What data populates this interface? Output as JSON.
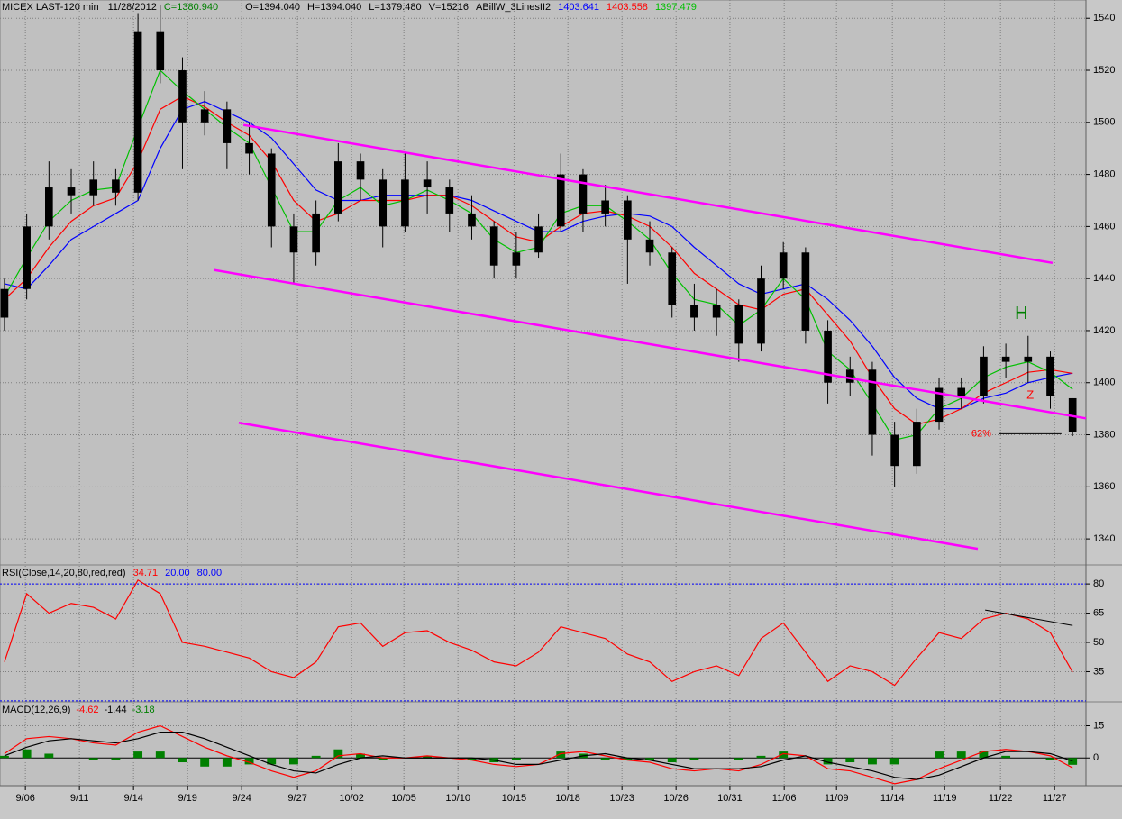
{
  "chart_data": [
    {
      "type": "candlestick",
      "title": "MICEX LAST-120 min",
      "date": "11/28/2012",
      "ohlcv_labels": [
        "C=1380.940",
        "O=1394.040",
        "H=1394.040",
        "L=1379.480",
        "V=15216"
      ],
      "indicator": "ABillW_3LinesII2",
      "open": [
        1425,
        1436,
        1460,
        1475,
        1472,
        1478,
        1473,
        1535,
        1520,
        1500,
        1505,
        1492,
        1488,
        1460,
        1450,
        1465,
        1485,
        1478,
        1460,
        1478,
        1475,
        1465,
        1460,
        1445,
        1450,
        1460,
        1480,
        1465,
        1470,
        1455,
        1450,
        1430,
        1425,
        1430,
        1415,
        1440,
        1450,
        1420,
        1400,
        1405,
        1380,
        1368,
        1385,
        1398,
        1395,
        1410,
        1408,
        1410,
        1394.04
      ],
      "high": [
        1440,
        1465,
        1485,
        1482,
        1485,
        1482,
        1542,
        1545,
        1525,
        1512,
        1508,
        1500,
        1490,
        1465,
        1470,
        1492,
        1488,
        1482,
        1488,
        1485,
        1478,
        1472,
        1462,
        1458,
        1465,
        1488,
        1482,
        1476,
        1472,
        1462,
        1452,
        1438,
        1436,
        1432,
        1445,
        1454,
        1452,
        1424,
        1410,
        1408,
        1385,
        1390,
        1402,
        1402,
        1414,
        1415,
        1418,
        1412,
        1394.04
      ],
      "low": [
        1420,
        1432,
        1455,
        1465,
        1468,
        1468,
        1470,
        1515,
        1482,
        1495,
        1482,
        1480,
        1452,
        1438,
        1445,
        1462,
        1470,
        1452,
        1458,
        1465,
        1458,
        1455,
        1440,
        1440,
        1448,
        1458,
        1458,
        1460,
        1438,
        1445,
        1425,
        1420,
        1418,
        1408,
        1412,
        1436,
        1415,
        1392,
        1395,
        1372,
        1360,
        1365,
        1382,
        1390,
        1392,
        1402,
        1400,
        1390,
        1379.48
      ],
      "close": [
        1436,
        1460,
        1475,
        1472,
        1478,
        1473,
        1535,
        1520,
        1500,
        1505,
        1492,
        1488,
        1460,
        1450,
        1465,
        1485,
        1478,
        1460,
        1478,
        1475,
        1465,
        1460,
        1445,
        1450,
        1460,
        1480,
        1465,
        1470,
        1455,
        1450,
        1430,
        1425,
        1430,
        1415,
        1440,
        1450,
        1420,
        1400,
        1405,
        1380,
        1368,
        1385,
        1398,
        1395,
        1410,
        1408,
        1410,
        1395,
        1380.94
      ],
      "candle_color": "#000000",
      "series": [
        {
          "name": "blue",
          "color": "#0000ff",
          "values": [
            1438,
            1436,
            1445,
            1455,
            1460,
            1465,
            1470,
            1490,
            1505,
            1508,
            1504,
            1500,
            1494,
            1484,
            1474,
            1470,
            1470,
            1472,
            1472,
            1472,
            1472,
            1470,
            1466,
            1462,
            1458,
            1458,
            1462,
            1464,
            1465,
            1464,
            1460,
            1452,
            1445,
            1438,
            1434,
            1436,
            1438,
            1432,
            1424,
            1414,
            1402,
            1394,
            1390,
            1390,
            1394,
            1396,
            1400,
            1402,
            1403.641
          ]
        },
        {
          "name": "red",
          "color": "#ff0000",
          "values": [
            1432,
            1440,
            1452,
            1462,
            1468,
            1471,
            1485,
            1505,
            1510,
            1506,
            1500,
            1495,
            1485,
            1470,
            1462,
            1465,
            1470,
            1470,
            1470,
            1472,
            1472,
            1468,
            1462,
            1456,
            1454,
            1460,
            1465,
            1466,
            1464,
            1460,
            1452,
            1442,
            1436,
            1430,
            1428,
            1434,
            1436,
            1426,
            1416,
            1402,
            1390,
            1384,
            1386,
            1390,
            1396,
            1400,
            1404,
            1405,
            1403.558
          ]
        },
        {
          "name": "green",
          "color": "#00c000",
          "values": [
            1433,
            1448,
            1462,
            1470,
            1474,
            1475,
            1498,
            1520,
            1512,
            1505,
            1498,
            1492,
            1475,
            1458,
            1458,
            1470,
            1475,
            1468,
            1470,
            1474,
            1470,
            1465,
            1455,
            1450,
            1452,
            1465,
            1468,
            1468,
            1462,
            1455,
            1442,
            1432,
            1430,
            1422,
            1428,
            1440,
            1432,
            1412,
            1405,
            1392,
            1378,
            1380,
            1390,
            1394,
            1402,
            1406,
            1408,
            1404,
            1397.479
          ]
        }
      ],
      "xlim": [
        -0.2,
        48.6
      ],
      "xticks": [
        {
          "value": 0.94,
          "label": "9/06"
        },
        {
          "value": 3.37,
          "label": "9/11"
        },
        {
          "value": 5.8,
          "label": "9/14"
        },
        {
          "value": 8.23,
          "label": "9/19"
        },
        {
          "value": 10.66,
          "label": "9/24"
        },
        {
          "value": 13.17,
          "label": "9/27"
        },
        {
          "value": 15.6,
          "label": "10/02"
        },
        {
          "value": 17.95,
          "label": "10/05"
        },
        {
          "value": 20.38,
          "label": "10/10"
        },
        {
          "value": 22.9,
          "label": "10/15"
        },
        {
          "value": 25.32,
          "label": "10/18"
        },
        {
          "value": 27.75,
          "label": "10/23"
        },
        {
          "value": 30.18,
          "label": "10/26"
        },
        {
          "value": 32.6,
          "label": "10/31"
        },
        {
          "value": 35.04,
          "label": "11/06"
        },
        {
          "value": 37.39,
          "label": "11/09"
        },
        {
          "value": 39.9,
          "label": "11/14"
        },
        {
          "value": 42.25,
          "label": "11/19"
        },
        {
          "value": 44.76,
          "label": "11/22"
        },
        {
          "value": 47.19,
          "label": "11/27"
        }
      ],
      "ylim": [
        1330,
        1547
      ],
      "yticks": [
        1340,
        1360,
        1380,
        1400,
        1420,
        1440,
        1460,
        1480,
        1500,
        1520,
        1540
      ],
      "grid": true,
      "lines": [
        {
          "x": [
            10.74,
            47.1
          ],
          "y": [
            1499,
            1446
          ],
          "color": "#ff00ff"
        },
        {
          "x": [
            9.41,
            48.6
          ],
          "y": [
            1443.3,
            1386.3
          ],
          "color": "#ff00ff"
        },
        {
          "x": [
            10.53,
            43.74
          ],
          "y": [
            1384.6,
            1336.2
          ],
          "color": "#ff00ff"
        },
        {
          "x": [
            44.7,
            47.5
          ],
          "y": [
            1380.4,
            1380.4
          ],
          "color": "#000000"
        }
      ],
      "annotations": [
        {
          "text": "H",
          "x": 45.7,
          "y": 1426.3,
          "color": "#008000"
        },
        {
          "text": "Z",
          "x": 46.1,
          "y": 1395,
          "color": "#ff0000"
        },
        {
          "text": "62%",
          "x": 43.9,
          "y": 1380.4,
          "color": "#ff0000"
        }
      ]
    },
    {
      "type": "line",
      "title": "RSI(Close,14,20,80,red,red)",
      "series": [
        {
          "name": "RSI",
          "color": "#ff0000",
          "values": [
            40,
            75,
            65,
            70,
            68,
            62,
            82,
            75,
            50,
            48,
            45,
            42,
            35,
            32,
            40,
            58,
            60,
            48,
            55,
            56,
            50,
            46,
            40,
            38,
            45,
            58,
            55,
            52,
            44,
            40,
            30,
            35,
            38,
            33,
            52,
            60,
            45,
            30,
            38,
            35,
            28,
            42,
            55,
            52,
            62,
            65,
            62,
            55,
            34.71
          ]
        }
      ],
      "levels": [
        {
          "value": 20,
          "label": "20.00"
        },
        {
          "value": 80,
          "label": "80.00"
        }
      ],
      "level_color": "#0000ff",
      "ylim": [
        19.5,
        89.3
      ],
      "yticks": [
        35,
        50,
        65,
        80
      ],
      "grid": true,
      "lines": [
        {
          "x": [
            44.07,
            48
          ],
          "y": [
            66.6,
            58.7
          ],
          "color": "#000000"
        }
      ]
    },
    {
      "type": "macd",
      "title": "MACD(12,26,9)",
      "series": [
        {
          "name": "MACD",
          "color": "#ff0000",
          "kind": "line",
          "values": [
            2,
            9,
            10,
            9,
            7,
            6,
            12,
            15,
            10,
            5,
            1,
            -2,
            -6,
            -9,
            -6,
            1,
            2,
            0,
            0,
            1,
            0,
            -1,
            -3,
            -4,
            -3,
            2,
            3,
            1,
            -1,
            -2,
            -5,
            -6,
            -5,
            -6,
            -3,
            2,
            1,
            -5,
            -6,
            -9,
            -12,
            -10,
            -5,
            -1,
            3,
            4,
            3,
            1,
            -4.62
          ]
        },
        {
          "name": "Signal",
          "color": "#000000",
          "kind": "line",
          "values": [
            1,
            5,
            8,
            9,
            8,
            7,
            9,
            12,
            12,
            9,
            5,
            1,
            -3,
            -6,
            -7,
            -3,
            0,
            1,
            0,
            0,
            0,
            0,
            -1,
            -3,
            -3,
            -1,
            1,
            2,
            0,
            -1,
            -3,
            -5,
            -5,
            -5,
            -4,
            -1,
            1,
            -2,
            -4,
            -6,
            -9,
            -10,
            -8,
            -4,
            0,
            3,
            3,
            2,
            -1.44
          ]
        },
        {
          "name": "Histogram",
          "color": "#008000",
          "kind": "bar",
          "values": [
            1,
            4,
            2,
            0,
            -1,
            -1,
            3,
            3,
            -2,
            -4,
            -4,
            -3,
            -3,
            -3,
            1,
            4,
            2,
            -1,
            0,
            1,
            0,
            -1,
            -2,
            -1,
            0,
            3,
            2,
            -1,
            -1,
            -1,
            -2,
            -1,
            0,
            -1,
            1,
            3,
            0,
            -3,
            -2,
            -3,
            -3,
            0,
            3,
            3,
            3,
            1,
            0,
            -1,
            -3.18
          ]
        }
      ],
      "ylim": [
        -12.9,
        25.7
      ],
      "yticks": [
        0,
        15
      ],
      "grid": true
    }
  ]
}
